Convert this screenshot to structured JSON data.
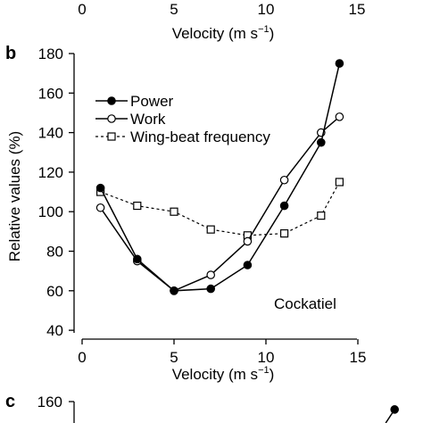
{
  "top_axis_fragment": {
    "ticks": [
      "0",
      "5",
      "10",
      "15"
    ],
    "xlabel": "Velocity (m s",
    "xlabel_sup": "−1",
    "xlabel_close": ")"
  },
  "panel_b": {
    "label": "b",
    "annotation": "Cockatiel",
    "xlabel": "Velocity (m s",
    "xlabel_sup": "−1",
    "xlabel_close": ")",
    "ylabel": "Relative values (%)",
    "legend_entries": [
      "Power",
      "Work",
      "Wing-beat frequency"
    ]
  },
  "panel_c_fragment": {
    "label": "c",
    "ytick": "160",
    "y_value": 160,
    "point": {
      "x": 17,
      "y": 156
    }
  },
  "chart_data": [
    {
      "type": "line",
      "title": "",
      "xlabel": "Velocity (m s−1)",
      "ylabel": "",
      "xlim": [
        0,
        17
      ],
      "x_ticks": [
        0,
        5,
        10,
        15
      ],
      "x_tick_labels": [
        "0",
        "5",
        "10",
        "15"
      ],
      "note": "Top panel cut off; only x-axis visible"
    },
    {
      "type": "line",
      "title": "",
      "xlabel": "Velocity (m s−1)",
      "ylabel": "Relative values (%)",
      "xlim": [
        0,
        17
      ],
      "ylim": [
        40,
        180
      ],
      "x_ticks": [
        0,
        5,
        10,
        15
      ],
      "x_tick_labels": [
        "0",
        "5",
        "10",
        "15"
      ],
      "y_ticks": [
        40,
        60,
        80,
        100,
        120,
        140,
        160,
        180
      ],
      "y_tick_labels": [
        "40",
        "60",
        "80",
        "100",
        "120",
        "140",
        "160",
        "180"
      ],
      "grid": false,
      "legend_position": "top-left",
      "series": [
        {
          "name": "Power",
          "marker": "filled-circle",
          "line": "solid",
          "x": [
            1,
            3,
            5,
            7,
            9,
            11,
            13,
            14
          ],
          "y": [
            112,
            76,
            60,
            61,
            73,
            103,
            135,
            175
          ]
        },
        {
          "name": "Work",
          "marker": "open-circle",
          "line": "solid",
          "x": [
            1,
            3,
            5,
            7,
            9,
            11,
            13,
            14
          ],
          "y": [
            102,
            75,
            60,
            68,
            85,
            116,
            140,
            148
          ]
        },
        {
          "name": "Wing-beat frequency",
          "marker": "open-square",
          "line": "dashed",
          "x": [
            1,
            3,
            5,
            7,
            9,
            11,
            13,
            14
          ],
          "y": [
            110,
            103,
            100,
            91,
            88,
            89,
            98,
            115
          ]
        }
      ]
    },
    {
      "type": "line",
      "title": "",
      "xlabel": "",
      "ylabel": "",
      "y_ticks": [
        160
      ],
      "y_tick_labels": [
        "160"
      ],
      "note": "Next panel cut off; only top visible"
    }
  ]
}
